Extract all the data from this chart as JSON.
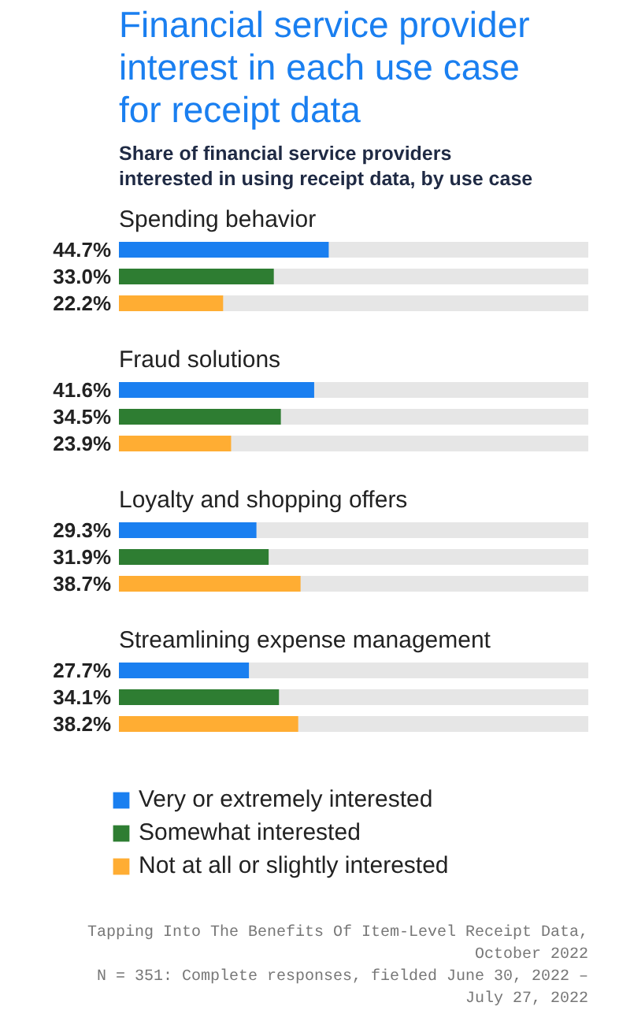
{
  "chart_data": {
    "type": "bar",
    "orientation": "horizontal",
    "title": "Financial service provider interest in each use case for receipt data",
    "subtitle": "Share of financial service providers interested in using receipt data, by use case",
    "categories": [
      "Spending behavior",
      "Fraud solutions",
      "Loyalty and shopping offers",
      "Streamlining expense management"
    ],
    "series": [
      {
        "name": "Very or extremely interested",
        "color": "#1a7ff0",
        "values": [
          44.7,
          41.6,
          29.3,
          27.7
        ],
        "value_labels": [
          "44.7%",
          "41.6%",
          "29.3%",
          "27.7%"
        ]
      },
      {
        "name": "Somewhat interested",
        "color": "#2e7d32",
        "values": [
          33.0,
          34.5,
          31.9,
          34.1
        ],
        "value_labels": [
          "33.0%",
          "34.5%",
          "31.9%",
          "34.1%"
        ]
      },
      {
        "name": "Not at all or slightly interested",
        "color": "#ffad33",
        "values": [
          22.2,
          23.9,
          38.7,
          38.2
        ],
        "value_labels": [
          "22.2%",
          "23.9%",
          "38.7%",
          "38.2%"
        ]
      }
    ],
    "xlim": [
      0,
      100
    ],
    "tick_labels": false,
    "grid": false,
    "legend": "bottom",
    "annotations": [
      "Tapping Into The Benefits Of Item-Level Receipt Data, October 2022",
      "N = 351: Complete responses, fielded June 30, 2022 – July 27, 2022"
    ]
  }
}
